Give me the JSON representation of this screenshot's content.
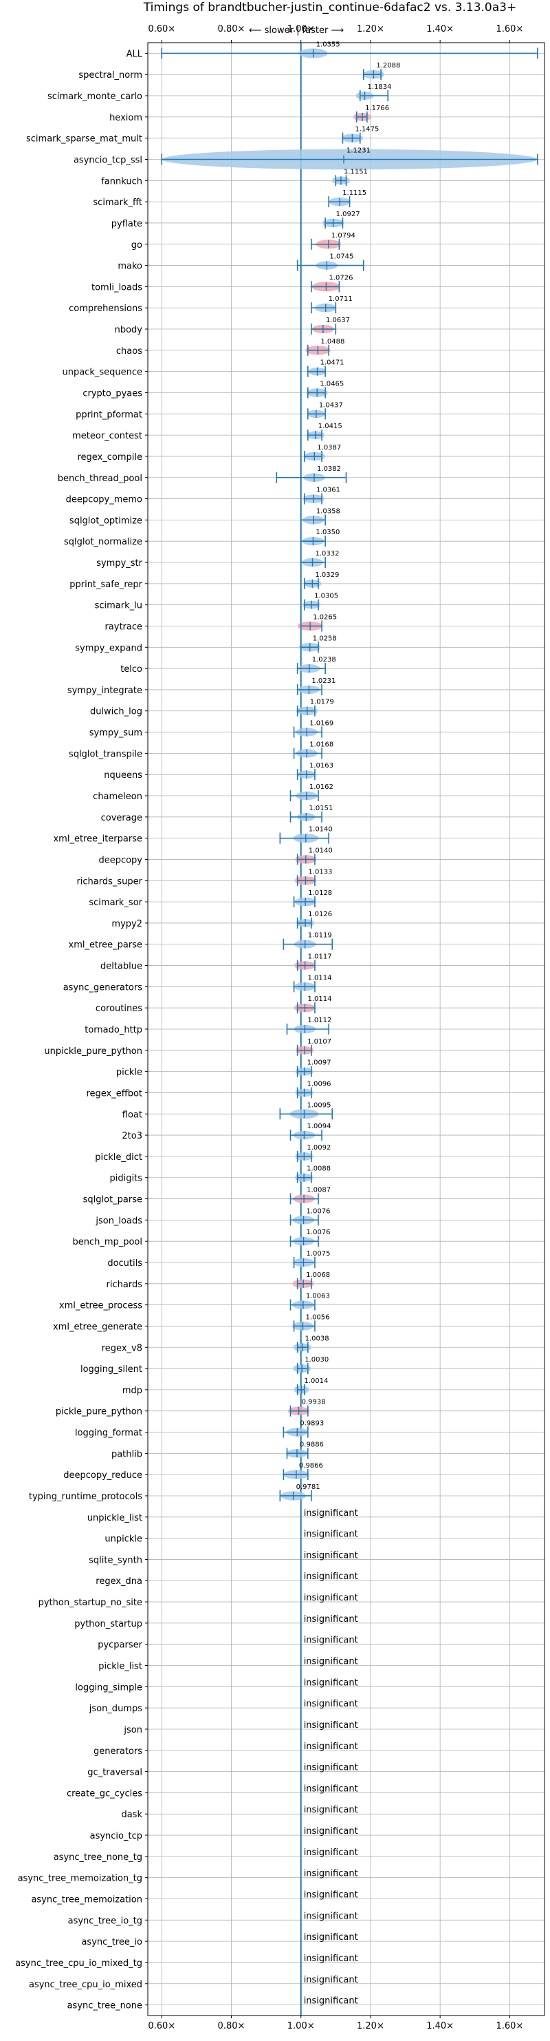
{
  "chart_data": {
    "type": "violin",
    "title": "Timings of brandtbucher-justin_continue-6dafac2 vs. 3.13.0a3+",
    "direction_annotation": "⟵ slower | faster ⟶",
    "insignificant_label": "insignificant",
    "xlim": [
      0.56,
      1.7
    ],
    "xticks": [
      0.6,
      0.8,
      1.0,
      1.2,
      1.4,
      1.6
    ],
    "xtick_labels": [
      "0.60×",
      "0.80×",
      "1.00×",
      "1.20×",
      "1.40×",
      "1.60×"
    ],
    "reference_x": 1.0,
    "grid": true,
    "colors": {
      "faster": "#a6c8e8",
      "slower": "#f4a6ad",
      "line": "#1f77b4",
      "grid": "#b0b0b0"
    },
    "benchmarks": [
      {
        "name": "ALL",
        "value": 1.0355,
        "label": "1.0355",
        "lo": 0.6,
        "hi": 1.68,
        "kind": "faster",
        "width": 0.05
      },
      {
        "name": "spectral_norm",
        "value": 1.2088,
        "label": "1.2088",
        "lo": 1.18,
        "hi": 1.23,
        "kind": "faster",
        "width": 0.03
      },
      {
        "name": "scimark_monte_carlo",
        "value": 1.1834,
        "label": "1.1834",
        "lo": 1.17,
        "hi": 1.25,
        "kind": "faster",
        "width": 0.02
      },
      {
        "name": "hexiom",
        "value": 1.1766,
        "label": "1.1766",
        "lo": 1.16,
        "hi": 1.19,
        "kind": "slower",
        "width": 0.02
      },
      {
        "name": "scimark_sparse_mat_mult",
        "value": 1.1475,
        "label": "1.1475",
        "lo": 1.12,
        "hi": 1.17,
        "kind": "faster",
        "width": 0.03
      },
      {
        "name": "asyncio_tcp_ssl",
        "value": 1.1231,
        "label": "1.1231",
        "lo": 0.6,
        "hi": 1.68,
        "kind": "faster",
        "width": 0.45
      },
      {
        "name": "fannkuch",
        "value": 1.1151,
        "label": "1.1151",
        "lo": 1.1,
        "hi": 1.13,
        "kind": "faster",
        "width": 0.02
      },
      {
        "name": "scimark_fft",
        "value": 1.1115,
        "label": "1.1115",
        "lo": 1.08,
        "hi": 1.14,
        "kind": "faster",
        "width": 0.03
      },
      {
        "name": "pyflate",
        "value": 1.0927,
        "label": "1.0927",
        "lo": 1.07,
        "hi": 1.12,
        "kind": "faster",
        "width": 0.03
      },
      {
        "name": "go",
        "value": 1.0794,
        "label": "1.0794",
        "lo": 1.03,
        "hi": 1.11,
        "kind": "slower",
        "width": 0.04
      },
      {
        "name": "mako",
        "value": 1.0745,
        "label": "1.0745",
        "lo": 0.99,
        "hi": 1.18,
        "kind": "faster",
        "width": 0.03
      },
      {
        "name": "tomli_loads",
        "value": 1.0726,
        "label": "1.0726",
        "lo": 1.03,
        "hi": 1.11,
        "kind": "slower",
        "width": 0.05
      },
      {
        "name": "comprehensions",
        "value": 1.0711,
        "label": "1.0711",
        "lo": 1.03,
        "hi": 1.1,
        "kind": "faster",
        "width": 0.03
      },
      {
        "name": "nbody",
        "value": 1.0637,
        "label": "1.0637",
        "lo": 1.03,
        "hi": 1.1,
        "kind": "slower",
        "width": 0.03
      },
      {
        "name": "chaos",
        "value": 1.0488,
        "label": "1.0488",
        "lo": 1.02,
        "hi": 1.08,
        "kind": "slower",
        "width": 0.04
      },
      {
        "name": "unpack_sequence",
        "value": 1.0471,
        "label": "1.0471",
        "lo": 1.02,
        "hi": 1.07,
        "kind": "faster",
        "width": 0.02
      },
      {
        "name": "crypto_pyaes",
        "value": 1.0465,
        "label": "1.0465",
        "lo": 1.02,
        "hi": 1.07,
        "kind": "faster",
        "width": 0.03
      },
      {
        "name": "pprint_pformat",
        "value": 1.0437,
        "label": "1.0437",
        "lo": 1.02,
        "hi": 1.07,
        "kind": "faster",
        "width": 0.02
      },
      {
        "name": "meteor_contest",
        "value": 1.0415,
        "label": "1.0415",
        "lo": 1.02,
        "hi": 1.06,
        "kind": "faster",
        "width": 0.02
      },
      {
        "name": "regex_compile",
        "value": 1.0387,
        "label": "1.0387",
        "lo": 1.01,
        "hi": 1.06,
        "kind": "faster",
        "width": 0.03
      },
      {
        "name": "bench_thread_pool",
        "value": 1.0382,
        "label": "1.0382",
        "lo": 0.93,
        "hi": 1.13,
        "kind": "faster",
        "width": 0.03
      },
      {
        "name": "deepcopy_memo",
        "value": 1.0361,
        "label": "1.0361",
        "lo": 1.01,
        "hi": 1.06,
        "kind": "faster",
        "width": 0.03
      },
      {
        "name": "sqlglot_optimize",
        "value": 1.0358,
        "label": "1.0358",
        "lo": 1.0,
        "hi": 1.07,
        "kind": "faster",
        "width": 0.03
      },
      {
        "name": "sqlglot_normalize",
        "value": 1.035,
        "label": "1.0350",
        "lo": 1.0,
        "hi": 1.07,
        "kind": "faster",
        "width": 0.03
      },
      {
        "name": "sympy_str",
        "value": 1.0332,
        "label": "1.0332",
        "lo": 1.0,
        "hi": 1.07,
        "kind": "faster",
        "width": 0.03
      },
      {
        "name": "pprint_safe_repr",
        "value": 1.0329,
        "label": "1.0329",
        "lo": 1.01,
        "hi": 1.05,
        "kind": "faster",
        "width": 0.02
      },
      {
        "name": "scimark_lu",
        "value": 1.0305,
        "label": "1.0305",
        "lo": 1.01,
        "hi": 1.05,
        "kind": "faster",
        "width": 0.02
      },
      {
        "name": "raytrace",
        "value": 1.0265,
        "label": "1.0265",
        "lo": 1.0,
        "hi": 1.06,
        "kind": "slower",
        "width": 0.04
      },
      {
        "name": "sympy_expand",
        "value": 1.0258,
        "label": "1.0258",
        "lo": 1.0,
        "hi": 1.05,
        "kind": "faster",
        "width": 0.03
      },
      {
        "name": "telco",
        "value": 1.0238,
        "label": "1.0238",
        "lo": 0.99,
        "hi": 1.07,
        "kind": "faster",
        "width": 0.03
      },
      {
        "name": "sympy_integrate",
        "value": 1.0231,
        "label": "1.0231",
        "lo": 0.99,
        "hi": 1.06,
        "kind": "faster",
        "width": 0.03
      },
      {
        "name": "dulwich_log",
        "value": 1.0179,
        "label": "1.0179",
        "lo": 0.99,
        "hi": 1.04,
        "kind": "faster",
        "width": 0.03
      },
      {
        "name": "sympy_sum",
        "value": 1.0169,
        "label": "1.0169",
        "lo": 0.98,
        "hi": 1.06,
        "kind": "faster",
        "width": 0.03
      },
      {
        "name": "sqlglot_transpile",
        "value": 1.0168,
        "label": "1.0168",
        "lo": 0.98,
        "hi": 1.06,
        "kind": "faster",
        "width": 0.03
      },
      {
        "name": "nqueens",
        "value": 1.0163,
        "label": "1.0163",
        "lo": 0.99,
        "hi": 1.04,
        "kind": "faster",
        "width": 0.02
      },
      {
        "name": "chameleon",
        "value": 1.0162,
        "label": "1.0162",
        "lo": 0.97,
        "hi": 1.05,
        "kind": "faster",
        "width": 0.03
      },
      {
        "name": "coverage",
        "value": 1.0151,
        "label": "1.0151",
        "lo": 0.97,
        "hi": 1.06,
        "kind": "faster",
        "width": 0.02
      },
      {
        "name": "xml_etree_iterparse",
        "value": 1.014,
        "label": "1.0140",
        "lo": 0.94,
        "hi": 1.08,
        "kind": "faster",
        "width": 0.04
      },
      {
        "name": "deepcopy",
        "value": 1.014,
        "label": "1.0140",
        "lo": 0.99,
        "hi": 1.04,
        "kind": "slower",
        "width": 0.03
      },
      {
        "name": "richards_super",
        "value": 1.0133,
        "label": "1.0133",
        "lo": 0.99,
        "hi": 1.04,
        "kind": "slower",
        "width": 0.03
      },
      {
        "name": "scimark_sor",
        "value": 1.0128,
        "label": "1.0128",
        "lo": 0.98,
        "hi": 1.04,
        "kind": "faster",
        "width": 0.03
      },
      {
        "name": "mypy2",
        "value": 1.0126,
        "label": "1.0126",
        "lo": 0.99,
        "hi": 1.03,
        "kind": "faster",
        "width": 0.02
      },
      {
        "name": "xml_etree_parse",
        "value": 1.0119,
        "label": "1.0119",
        "lo": 0.95,
        "hi": 1.09,
        "kind": "faster",
        "width": 0.03
      },
      {
        "name": "deltablue",
        "value": 1.0117,
        "label": "1.0117",
        "lo": 0.99,
        "hi": 1.04,
        "kind": "slower",
        "width": 0.03
      },
      {
        "name": "async_generators",
        "value": 1.0114,
        "label": "1.0114",
        "lo": 0.98,
        "hi": 1.04,
        "kind": "faster",
        "width": 0.03
      },
      {
        "name": "coroutines",
        "value": 1.0114,
        "label": "1.0114",
        "lo": 0.99,
        "hi": 1.04,
        "kind": "slower",
        "width": 0.03
      },
      {
        "name": "tornado_http",
        "value": 1.0112,
        "label": "1.0112",
        "lo": 0.96,
        "hi": 1.08,
        "kind": "faster",
        "width": 0.03
      },
      {
        "name": "unpickle_pure_python",
        "value": 1.0107,
        "label": "1.0107",
        "lo": 0.99,
        "hi": 1.03,
        "kind": "slower",
        "width": 0.02
      },
      {
        "name": "pickle",
        "value": 1.0097,
        "label": "1.0097",
        "lo": 0.99,
        "hi": 1.03,
        "kind": "faster",
        "width": 0.02
      },
      {
        "name": "regex_effbot",
        "value": 1.0096,
        "label": "1.0096",
        "lo": 0.99,
        "hi": 1.03,
        "kind": "faster",
        "width": 0.02
      },
      {
        "name": "float",
        "value": 1.0095,
        "label": "1.0095",
        "lo": 0.94,
        "hi": 1.09,
        "kind": "faster",
        "width": 0.05
      },
      {
        "name": "2to3",
        "value": 1.0094,
        "label": "1.0094",
        "lo": 0.97,
        "hi": 1.06,
        "kind": "faster",
        "width": 0.03
      },
      {
        "name": "pickle_dict",
        "value": 1.0092,
        "label": "1.0092",
        "lo": 0.99,
        "hi": 1.03,
        "kind": "faster",
        "width": 0.02
      },
      {
        "name": "pidigits",
        "value": 1.0088,
        "label": "1.0088",
        "lo": 0.99,
        "hi": 1.03,
        "kind": "faster",
        "width": 0.02
      },
      {
        "name": "sqlglot_parse",
        "value": 1.0087,
        "label": "1.0087",
        "lo": 0.97,
        "hi": 1.05,
        "kind": "slower",
        "width": 0.03
      },
      {
        "name": "json_loads",
        "value": 1.0076,
        "label": "1.0076",
        "lo": 0.97,
        "hi": 1.05,
        "kind": "faster",
        "width": 0.03
      },
      {
        "name": "bench_mp_pool",
        "value": 1.0076,
        "label": "1.0076",
        "lo": 0.97,
        "hi": 1.05,
        "kind": "faster",
        "width": 0.03
      },
      {
        "name": "docutils",
        "value": 1.0075,
        "label": "1.0075",
        "lo": 0.98,
        "hi": 1.04,
        "kind": "faster",
        "width": 0.03
      },
      {
        "name": "richards",
        "value": 1.0068,
        "label": "1.0068",
        "lo": 0.99,
        "hi": 1.03,
        "kind": "slower",
        "width": 0.03
      },
      {
        "name": "xml_etree_process",
        "value": 1.0063,
        "label": "1.0063",
        "lo": 0.97,
        "hi": 1.04,
        "kind": "faster",
        "width": 0.03
      },
      {
        "name": "xml_etree_generate",
        "value": 1.0056,
        "label": "1.0056",
        "lo": 0.98,
        "hi": 1.04,
        "kind": "faster",
        "width": 0.03
      },
      {
        "name": "regex_v8",
        "value": 1.0038,
        "label": "1.0038",
        "lo": 0.99,
        "hi": 1.02,
        "kind": "faster",
        "width": 0.02
      },
      {
        "name": "logging_silent",
        "value": 1.003,
        "label": "1.0030",
        "lo": 0.99,
        "hi": 1.02,
        "kind": "faster",
        "width": 0.02
      },
      {
        "name": "mdp",
        "value": 1.0014,
        "label": "1.0014",
        "lo": 0.99,
        "hi": 1.01,
        "kind": "faster",
        "width": 0.02
      },
      {
        "name": "pickle_pure_python",
        "value": 0.9938,
        "label": "0.9938",
        "lo": 0.97,
        "hi": 1.02,
        "kind": "slower",
        "width": 0.03
      },
      {
        "name": "logging_format",
        "value": 0.9893,
        "label": "0.9893",
        "lo": 0.95,
        "hi": 1.02,
        "kind": "faster",
        "width": 0.03
      },
      {
        "name": "pathlib",
        "value": 0.9886,
        "label": "0.9886",
        "lo": 0.96,
        "hi": 1.02,
        "kind": "faster",
        "width": 0.03
      },
      {
        "name": "deepcopy_reduce",
        "value": 0.9866,
        "label": "0.9866",
        "lo": 0.95,
        "hi": 1.02,
        "kind": "faster",
        "width": 0.04
      },
      {
        "name": "typing_runtime_protocols",
        "value": 0.9781,
        "label": "0.9781",
        "lo": 0.94,
        "hi": 1.03,
        "kind": "faster",
        "width": 0.04
      },
      {
        "name": "unpickle_list",
        "insignificant": true
      },
      {
        "name": "unpickle",
        "insignificant": true
      },
      {
        "name": "sqlite_synth",
        "insignificant": true
      },
      {
        "name": "regex_dna",
        "insignificant": true
      },
      {
        "name": "python_startup_no_site",
        "insignificant": true
      },
      {
        "name": "python_startup",
        "insignificant": true
      },
      {
        "name": "pycparser",
        "insignificant": true
      },
      {
        "name": "pickle_list",
        "insignificant": true
      },
      {
        "name": "logging_simple",
        "insignificant": true
      },
      {
        "name": "json_dumps",
        "insignificant": true
      },
      {
        "name": "json",
        "insignificant": true
      },
      {
        "name": "generators",
        "insignificant": true
      },
      {
        "name": "gc_traversal",
        "insignificant": true
      },
      {
        "name": "create_gc_cycles",
        "insignificant": true
      },
      {
        "name": "dask",
        "insignificant": true
      },
      {
        "name": "asyncio_tcp",
        "insignificant": true
      },
      {
        "name": "async_tree_none_tg",
        "insignificant": true
      },
      {
        "name": "async_tree_memoization_tg",
        "insignificant": true
      },
      {
        "name": "async_tree_memoization",
        "insignificant": true
      },
      {
        "name": "async_tree_io_tg",
        "insignificant": true
      },
      {
        "name": "async_tree_io",
        "insignificant": true
      },
      {
        "name": "async_tree_cpu_io_mixed_tg",
        "insignificant": true
      },
      {
        "name": "async_tree_cpu_io_mixed",
        "insignificant": true
      },
      {
        "name": "async_tree_none",
        "insignificant": true
      }
    ]
  }
}
